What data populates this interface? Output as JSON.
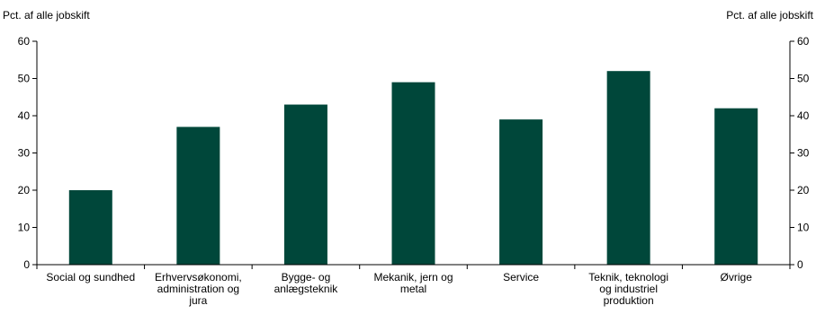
{
  "chart_data": {
    "type": "bar",
    "ylabel_left": "Pct. af alle jobskift",
    "ylabel_right": "Pct. af alle jobskift",
    "ylim": [
      0,
      60
    ],
    "yticks": [
      0,
      10,
      20,
      30,
      40,
      50,
      60
    ],
    "grid": false,
    "bar_color": "#00473A",
    "categories": [
      [
        "Social og sundhed"
      ],
      [
        "Erhvervsøkonomi,",
        "administration og",
        "jura"
      ],
      [
        "Bygge- og",
        "anlægsteknik"
      ],
      [
        "Mekanik, jern og",
        "metal"
      ],
      [
        "Service"
      ],
      [
        "Teknik, teknologi",
        "og industriel",
        "produktion"
      ],
      [
        "Øvrige"
      ]
    ],
    "values": [
      20,
      37,
      43,
      49,
      39,
      52,
      42
    ]
  }
}
